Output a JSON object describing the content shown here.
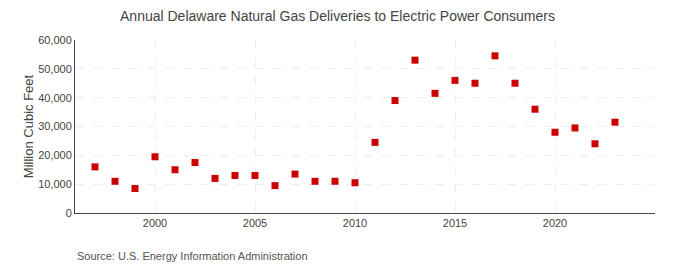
{
  "chart_data": {
    "type": "scatter",
    "title": "Annual Delaware Natural Gas Deliveries to Electric Power Consumers",
    "ylabel": "Million Cubic Feet",
    "annotations": [
      "Source: U.S. Energy Information Administration"
    ],
    "x": [
      1997,
      1998,
      1999,
      2000,
      2001,
      2002,
      2003,
      2004,
      2005,
      2006,
      2007,
      2008,
      2009,
      2010,
      2011,
      2012,
      2013,
      2014,
      2015,
      2016,
      2017,
      2018,
      2019,
      2020,
      2021,
      2022,
      2023
    ],
    "values": [
      16000,
      11000,
      8500,
      19500,
      15000,
      17500,
      12000,
      13000,
      13000,
      9500,
      13500,
      11000,
      11000,
      10500,
      24500,
      39000,
      53000,
      41500,
      46000,
      45000,
      54500,
      45000,
      36000,
      28000,
      29500,
      24000,
      31500
    ],
    "color": "#cc0000",
    "marker": "square",
    "xlim": [
      1996,
      2025
    ],
    "ylim": [
      0,
      60000
    ],
    "xticks": [
      2000,
      2005,
      2010,
      2015,
      2020
    ],
    "yticks": [
      0,
      {
        "value": 10000,
        "label": "10,000"
      },
      {
        "value": 20000,
        "label": "20,000"
      },
      {
        "value": 30000,
        "label": "30,000"
      },
      {
        "value": 40000,
        "label": "40,000"
      },
      {
        "value": 50000,
        "label": "50,000"
      },
      {
        "value": 60000,
        "label": "60,000"
      }
    ],
    "grid": true
  }
}
